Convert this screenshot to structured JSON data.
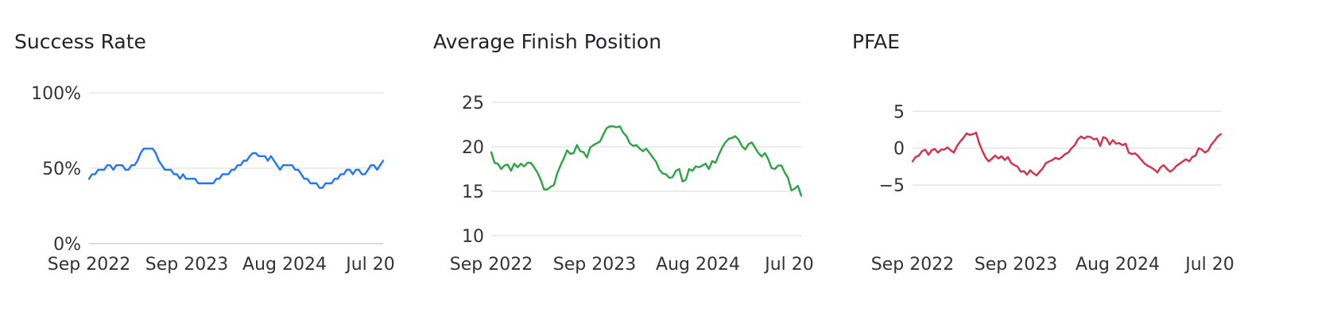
{
  "colors": {
    "success": "#1f77f4",
    "finish": "#2ca443",
    "pfae": "#d62f48",
    "grid": "#e2e2e2",
    "axis": "#cfcfcf"
  },
  "chart_data": [
    {
      "type": "line",
      "title": "Success Rate",
      "x_tick_labels": [
        "Sep 2022",
        "Sep 2023",
        "Aug 2024",
        "Jul 20"
      ],
      "y_tick_labels": [
        "0%",
        "50%",
        "100%"
      ],
      "ylim": [
        0,
        100
      ],
      "grid": true,
      "series": [
        {
          "values": [
            43,
            46,
            46,
            49,
            49,
            49,
            52,
            52,
            49,
            52,
            52,
            52,
            49,
            49,
            52,
            52,
            55,
            60,
            63,
            63,
            63,
            63,
            60,
            55,
            52,
            49,
            49,
            49,
            46,
            46,
            43,
            46,
            43,
            43,
            43,
            43,
            40,
            40,
            40,
            40,
            40,
            40,
            43,
            43,
            46,
            46,
            46,
            49,
            49,
            52,
            52,
            55,
            55,
            58,
            60,
            60,
            58,
            58,
            58,
            55,
            58,
            55,
            52,
            49,
            52,
            52,
            52,
            52,
            49,
            49,
            46,
            43,
            43,
            40,
            40,
            40,
            37,
            37,
            40,
            40,
            40,
            43,
            43,
            46,
            46,
            49,
            49,
            46,
            49,
            49,
            46,
            46,
            49,
            52,
            52,
            49,
            52,
            55
          ]
        }
      ]
    },
    {
      "type": "line",
      "title": "Average Finish Position",
      "x_tick_labels": [
        "Sep 2022",
        "Sep 2023",
        "Aug 2024",
        "Jul 20"
      ],
      "y_tick_labels": [
        "10",
        "15",
        "20",
        "25"
      ],
      "ylim": [
        10,
        25
      ],
      "grid": true,
      "series": [
        {
          "values": [
            19.4,
            18.2,
            18.1,
            17.5,
            17.9,
            18.0,
            17.3,
            18.1,
            17.7,
            18.1,
            17.8,
            18.2,
            18.2,
            17.7,
            17.1,
            16.3,
            15.2,
            15.2,
            15.5,
            15.7,
            17.0,
            17.9,
            18.7,
            19.6,
            19.2,
            19.3,
            20.2,
            19.5,
            19.4,
            18.8,
            19.9,
            20.2,
            20.4,
            20.6,
            21.4,
            22.1,
            22.3,
            22.3,
            22.2,
            22.3,
            21.6,
            21.2,
            20.4,
            20.1,
            20.2,
            19.8,
            19.5,
            19.8,
            19.3,
            18.8,
            18.3,
            17.4,
            17.0,
            16.9,
            16.5,
            16.6,
            17.3,
            17.5,
            16.1,
            16.3,
            17.5,
            17.3,
            17.8,
            17.7,
            17.9,
            18.1,
            17.5,
            18.4,
            18.2,
            19.1,
            19.9,
            20.5,
            20.9,
            21.0,
            21.2,
            20.8,
            20.1,
            19.7,
            20.3,
            20.5,
            19.9,
            19.3,
            18.9,
            19.3,
            18.6,
            17.6,
            17.5,
            17.9,
            17.9,
            17.1,
            16.5,
            15.1,
            15.3,
            15.6,
            14.5
          ]
        }
      ]
    },
    {
      "type": "line",
      "title": "PFAE",
      "x_tick_labels": [
        "Sep 2022",
        "Sep 2023",
        "Aug 2024",
        "Jul 20"
      ],
      "y_tick_labels": [
        "−5",
        "0",
        "5"
      ],
      "ylim": [
        -8,
        6
      ],
      "grid": true,
      "series": [
        {
          "values": [
            -1.8,
            -1.2,
            -1.0,
            -0.4,
            -0.2,
            -0.9,
            -0.3,
            -0.1,
            -0.6,
            -0.2,
            -0.2,
            0.1,
            -0.3,
            -0.6,
            0.3,
            0.9,
            1.4,
            2.0,
            1.8,
            1.9,
            2.1,
            0.6,
            -0.4,
            -1.3,
            -1.8,
            -1.4,
            -1.0,
            -1.4,
            -1.1,
            -1.6,
            -1.2,
            -2.0,
            -2.3,
            -2.5,
            -3.2,
            -3.1,
            -3.6,
            -3.0,
            -3.4,
            -3.7,
            -3.2,
            -2.7,
            -2.0,
            -1.8,
            -1.6,
            -1.3,
            -1.5,
            -1.2,
            -0.8,
            -0.6,
            0.0,
            0.4,
            1.2,
            1.6,
            1.3,
            1.6,
            1.5,
            1.2,
            1.3,
            0.3,
            1.5,
            1.3,
            0.5,
            1.1,
            0.6,
            0.7,
            0.4,
            0.6,
            -0.6,
            -0.8,
            -0.7,
            -1.1,
            -1.6,
            -2.1,
            -2.4,
            -2.6,
            -2.9,
            -3.3,
            -2.6,
            -2.3,
            -2.8,
            -3.2,
            -2.9,
            -2.4,
            -2.1,
            -1.8,
            -1.5,
            -1.8,
            -1.2,
            -1.0,
            0.0,
            -0.2,
            -0.6,
            -0.3,
            0.5,
            1.0,
            1.6,
            1.9
          ]
        }
      ]
    }
  ]
}
